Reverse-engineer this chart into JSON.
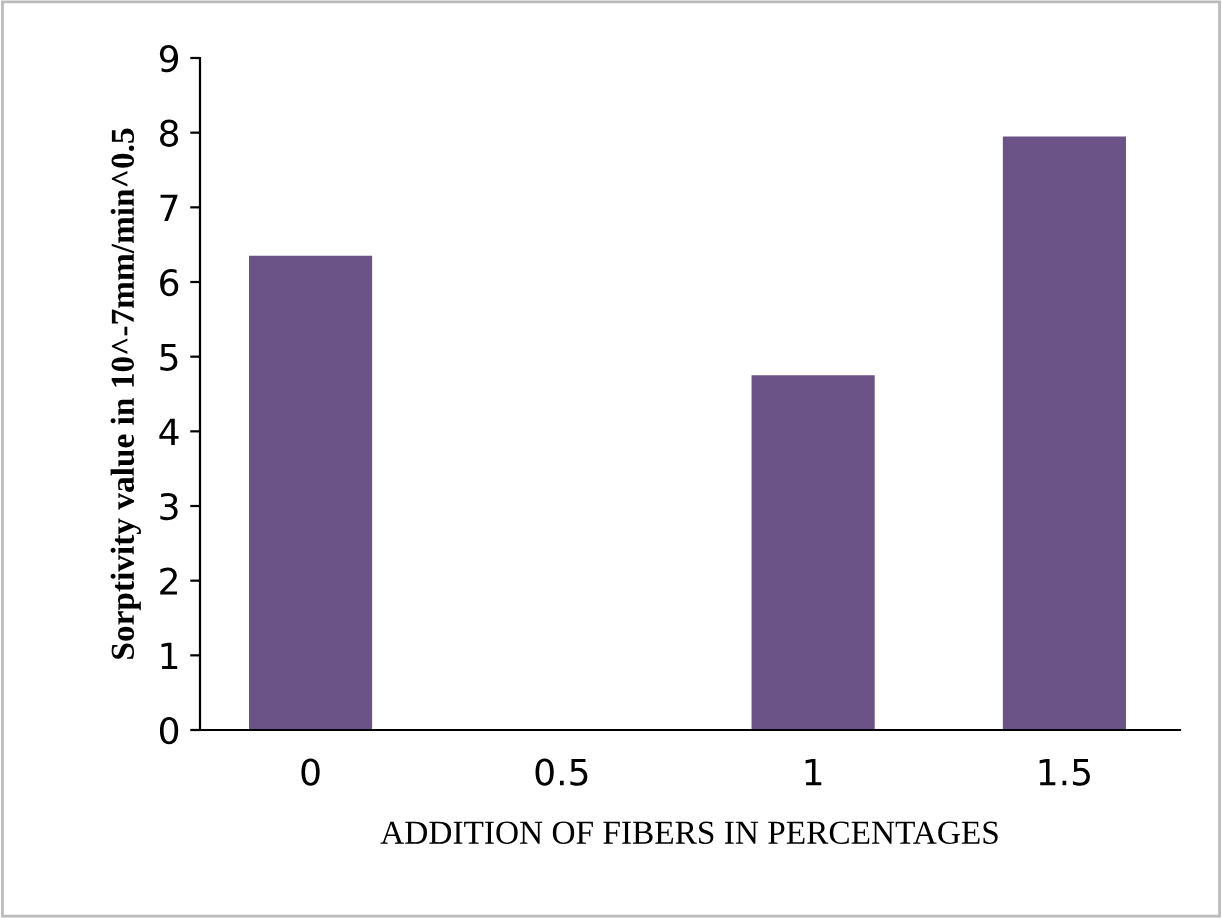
{
  "chart_data": {
    "type": "bar",
    "xlabel": "ADDITION OF FIBERS IN PERCENTAGES",
    "ylabel": "Sorptivity value in 10^-7mm/min^0.5",
    "categories": [
      "0",
      "0.5",
      "1",
      "1.5"
    ],
    "values": [
      6.35,
      null,
      4.75,
      7.95
    ],
    "color": "#6b5388",
    "ylim": [
      0,
      9
    ],
    "yticks": [
      0,
      1,
      2,
      3,
      4,
      5,
      6,
      7,
      8,
      9
    ],
    "grid": false
  }
}
